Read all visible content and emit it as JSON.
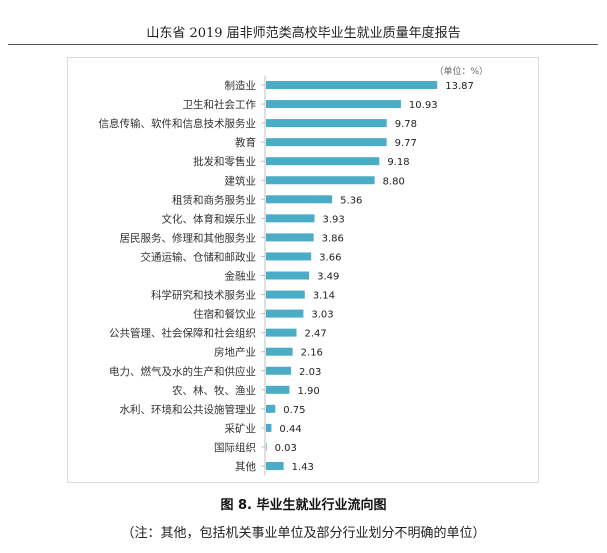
{
  "header": {
    "title": "山东省 2019 届非师范类高校毕业生就业质量年度报告"
  },
  "figure": {
    "caption": "图 8. 毕业生就业行业流向图",
    "note": "（注：其他，包括机关事业单位及部分行业划分不明确的单位）"
  },
  "chart_data": {
    "type": "bar",
    "orientation": "horizontal",
    "unit_label": "（单位：%）",
    "bar_color": "#4bacc6",
    "categories": [
      "制造业",
      "卫生和社会工作",
      "信息传输、软件和信息技术服务业",
      "教育",
      "批发和零售业",
      "建筑业",
      "租赁和商务服务业",
      "文化、体育和娱乐业",
      "居民服务、修理和其他服务业",
      "交通运输、仓储和邮政业",
      "金融业",
      "科学研究和技术服务业",
      "住宿和餐饮业",
      "公共管理、社会保障和社会组织",
      "房地产业",
      "电力、燃气及水的生产和供应业",
      "农、林、牧、渔业",
      "水利、环境和公共设施管理业",
      "采矿业",
      "国际组织",
      "其他"
    ],
    "values": [
      13.87,
      10.93,
      9.78,
      9.77,
      9.18,
      8.8,
      5.36,
      3.93,
      3.86,
      3.66,
      3.49,
      3.14,
      3.03,
      2.47,
      2.16,
      2.03,
      1.9,
      0.75,
      0.44,
      0.03,
      1.43
    ],
    "value_labels": [
      "13.87",
      "10.93",
      "9.78",
      "9.77",
      "9.18",
      "8.80",
      "5.36",
      "3.93",
      "3.86",
      "3.66",
      "3.49",
      "3.14",
      "3.03",
      "2.47",
      "2.16",
      "2.03",
      "1.90",
      "0.75",
      "0.44",
      "0.03",
      "1.43"
    ],
    "xlim": [
      0,
      14.5
    ],
    "grid": false,
    "legend": "none"
  }
}
